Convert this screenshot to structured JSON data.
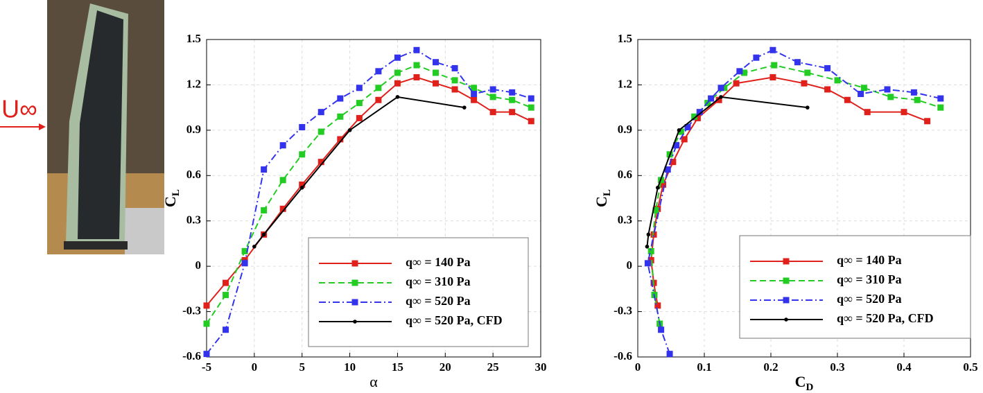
{
  "photo_label": "U∞",
  "chart_data": [
    {
      "type": "line",
      "xlabel": "α",
      "ylabel": {
        "text": "C",
        "subscript": "L"
      },
      "xlim": [
        -5,
        30
      ],
      "xticks": [
        -5,
        0,
        5,
        10,
        15,
        20,
        25,
        30
      ],
      "ylim": [
        -0.6,
        1.5
      ],
      "yticks": [
        -0.6,
        -0.3,
        0,
        0.3,
        0.6,
        0.9,
        1.2,
        1.5
      ],
      "grid": true,
      "legend": "lower right",
      "series": [
        {
          "name": "q∞ = 140 Pa",
          "color": "#e0201b",
          "linestyle": "solid",
          "marker": "square",
          "x": [
            -5,
            -3,
            -1,
            1,
            3,
            5,
            7,
            9,
            11,
            13,
            15,
            17,
            19,
            21,
            23,
            25,
            27,
            29
          ],
          "values": [
            -0.26,
            -0.11,
            0.04,
            0.21,
            0.38,
            0.54,
            0.69,
            0.84,
            0.98,
            1.1,
            1.21,
            1.25,
            1.21,
            1.17,
            1.1,
            1.02,
            1.02,
            0.96
          ]
        },
        {
          "name": "q∞ = 310 Pa",
          "color": "#22cc22",
          "linestyle": "dashed",
          "marker": "square",
          "x": [
            -5,
            -3,
            -1,
            1,
            3,
            5,
            7,
            9,
            11,
            13,
            15,
            17,
            19,
            21,
            23,
            25,
            27,
            29
          ],
          "values": [
            -0.38,
            -0.19,
            0.1,
            0.37,
            0.57,
            0.74,
            0.89,
            0.99,
            1.08,
            1.18,
            1.28,
            1.33,
            1.28,
            1.23,
            1.18,
            1.12,
            1.1,
            1.05
          ]
        },
        {
          "name": "q∞ = 520 Pa",
          "color": "#3333ee",
          "linestyle": "dashdot",
          "marker": "square",
          "x": [
            -5,
            -3,
            -1,
            1,
            3,
            5,
            7,
            9,
            11,
            13,
            15,
            17,
            19,
            21,
            23,
            25,
            27,
            29
          ],
          "values": [
            -0.58,
            -0.42,
            0.02,
            0.64,
            0.8,
            0.92,
            1.02,
            1.11,
            1.18,
            1.29,
            1.38,
            1.43,
            1.35,
            1.31,
            1.14,
            1.17,
            1.15,
            1.11
          ]
        },
        {
          "name": "q∞ = 520 Pa, CFD",
          "color": "#000000",
          "linestyle": "solid",
          "marker": "circle",
          "x": [
            0,
            1,
            5,
            10,
            15,
            22
          ],
          "values": [
            0.13,
            0.21,
            0.52,
            0.9,
            1.12,
            1.05
          ]
        }
      ]
    },
    {
      "type": "line",
      "xlabel": {
        "text": "C",
        "subscript": "D"
      },
      "ylabel": {
        "text": "C",
        "subscript": "L"
      },
      "xlim": [
        0,
        0.5
      ],
      "xticks": [
        0,
        0.1,
        0.2,
        0.3,
        0.4,
        0.5
      ],
      "ylim": [
        -0.6,
        1.5
      ],
      "yticks": [
        -0.6,
        -0.3,
        0,
        0.3,
        0.6,
        0.9,
        1.2,
        1.5
      ],
      "grid": true,
      "legend": "lower right",
      "series": [
        {
          "name": "q∞ = 140 Pa",
          "color": "#e0201b",
          "linestyle": "solid",
          "marker": "square",
          "x": [
            0.03,
            0.024,
            0.02,
            0.024,
            0.03,
            0.038,
            0.053,
            0.07,
            0.09,
            0.122,
            0.148,
            0.203,
            0.25,
            0.285,
            0.315,
            0.345,
            0.4,
            0.435
          ],
          "values": [
            -0.26,
            -0.11,
            0.04,
            0.21,
            0.38,
            0.54,
            0.69,
            0.84,
            0.98,
            1.1,
            1.21,
            1.25,
            1.21,
            1.17,
            1.1,
            1.02,
            1.02,
            0.96
          ]
        },
        {
          "name": "q∞ = 310 Pa",
          "color": "#22cc22",
          "linestyle": "dashed",
          "marker": "square",
          "x": [
            0.033,
            0.025,
            0.02,
            0.027,
            0.035,
            0.048,
            0.065,
            0.085,
            0.105,
            0.13,
            0.16,
            0.205,
            0.255,
            0.3,
            0.34,
            0.38,
            0.42,
            0.455
          ],
          "values": [
            -0.38,
            -0.19,
            0.1,
            0.37,
            0.57,
            0.74,
            0.89,
            0.99,
            1.08,
            1.18,
            1.28,
            1.33,
            1.28,
            1.23,
            1.18,
            1.12,
            1.1,
            1.05
          ]
        },
        {
          "name": "q∞ = 520 Pa",
          "color": "#3333ee",
          "linestyle": "dashdot",
          "marker": "square",
          "x": [
            0.048,
            0.035,
            0.015,
            0.045,
            0.058,
            0.075,
            0.093,
            0.11,
            0.125,
            0.153,
            0.178,
            0.203,
            0.24,
            0.285,
            0.335,
            0.375,
            0.415,
            0.455
          ],
          "values": [
            -0.58,
            -0.42,
            0.02,
            0.64,
            0.8,
            0.92,
            1.02,
            1.11,
            1.18,
            1.29,
            1.38,
            1.43,
            1.35,
            1.31,
            1.14,
            1.17,
            1.15,
            1.11
          ]
        },
        {
          "name": "q∞ = 520 Pa, CFD",
          "color": "#000000",
          "linestyle": "solid",
          "marker": "circle",
          "x": [
            0.014,
            0.016,
            0.03,
            0.062,
            0.125,
            0.255
          ],
          "values": [
            0.13,
            0.21,
            0.52,
            0.9,
            1.12,
            1.05
          ]
        }
      ]
    }
  ]
}
